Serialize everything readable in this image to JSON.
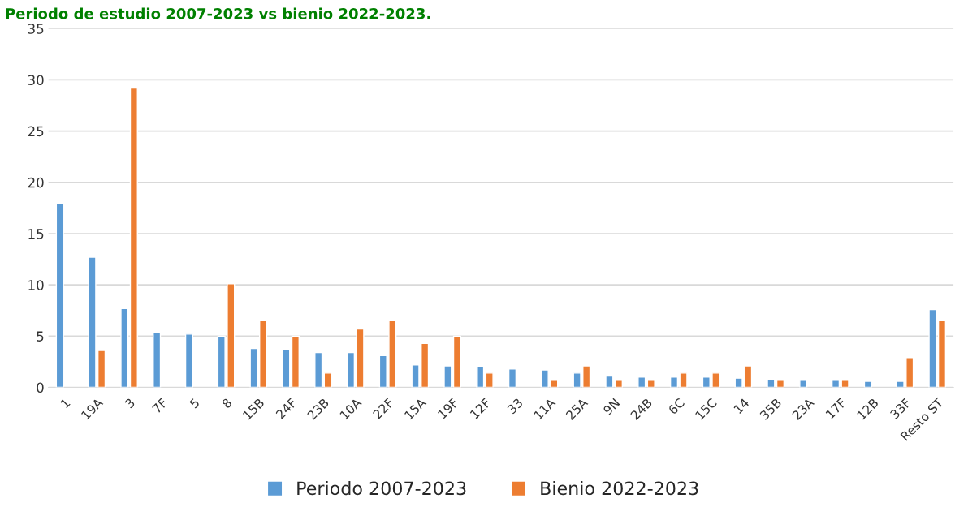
{
  "chart_data": {
    "type": "bar",
    "title": "Periodo de estudio 2007-2023 vs bienio 2022-2023.",
    "categories": [
      "1",
      "19A",
      "3",
      "7F",
      "5",
      "8",
      "15B",
      "24F",
      "23B",
      "10A",
      "22F",
      "15A",
      "19F",
      "12F",
      "33",
      "11A",
      "25A",
      "9N",
      "24B",
      "6C",
      "15C",
      "14",
      "35B",
      "23A",
      "17F",
      "12B",
      "33F",
      "Resto ST"
    ],
    "series": [
      {
        "name": "Periodo 2007-2023",
        "color": "#5b9bd5",
        "values": [
          17.9,
          12.7,
          7.7,
          5.4,
          5.2,
          5.0,
          3.8,
          3.7,
          3.4,
          3.4,
          3.1,
          2.2,
          2.1,
          2.0,
          1.8,
          1.7,
          1.4,
          1.1,
          1.0,
          1.0,
          1.0,
          0.9,
          0.8,
          0.7,
          0.7,
          0.6,
          0.6,
          7.6
        ]
      },
      {
        "name": "Bienio 2022-2023",
        "color": "#ed7d31",
        "values": [
          null,
          3.6,
          29.2,
          null,
          null,
          10.1,
          6.5,
          5.0,
          1.4,
          5.7,
          6.5,
          4.3,
          5.0,
          1.4,
          null,
          0.7,
          2.1,
          0.7,
          0.7,
          1.4,
          1.4,
          2.1,
          0.7,
          null,
          0.7,
          null,
          2.9,
          6.5
        ]
      }
    ],
    "ylim": [
      0,
      35
    ],
    "yticks": [
      0,
      5,
      10,
      15,
      20,
      25,
      30,
      35
    ],
    "grid": "y",
    "legend": "bottom"
  }
}
